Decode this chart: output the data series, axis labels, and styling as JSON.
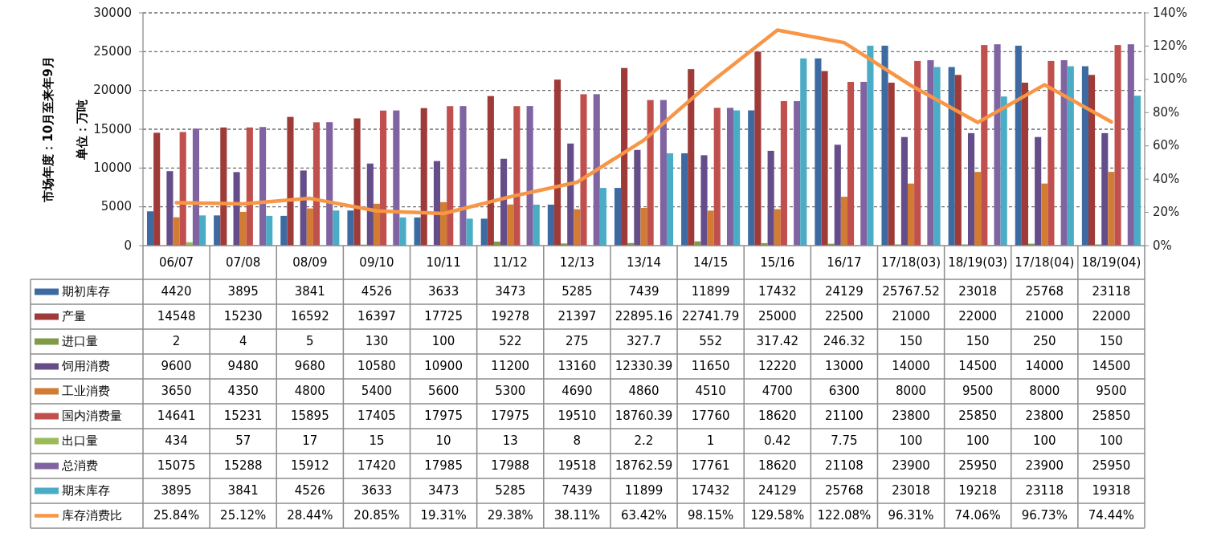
{
  "chart_data": {
    "type": "bar",
    "ylabel": "单位：万吨",
    "annotations": [
      "市场年度：10月至来年9月"
    ],
    "categories": [
      "06/07",
      "07/08",
      "08/09",
      "09/10",
      "10/11",
      "11/12",
      "12/13",
      "13/14",
      "14/15",
      "15/16",
      "16/17",
      "17/18(03)",
      "18/19(03)",
      "17/18(04)",
      "18/19(04)"
    ],
    "series": [
      {
        "name": "期初库存",
        "color": "#3d6aa0",
        "values": [
          4420,
          3895,
          3841,
          4526,
          3633,
          3473,
          5285,
          7439,
          11899,
          17432,
          24129,
          25767.52,
          23018,
          25768,
          23118
        ]
      },
      {
        "name": "产量",
        "color": "#9e3b38",
        "values": [
          14548,
          15230,
          16592,
          16397,
          17725,
          19278,
          21397,
          22895.16,
          22741.79,
          25000,
          22500,
          21000,
          22000,
          21000,
          22000
        ]
      },
      {
        "name": "进口量",
        "color": "#7f9a48",
        "values": [
          2,
          4,
          5,
          130,
          100,
          522,
          275,
          327.7,
          552,
          317.42,
          246.32,
          150,
          150,
          250,
          150
        ]
      },
      {
        "name": "饲用消费",
        "color": "#654d8a",
        "values": [
          9600,
          9480,
          9680,
          10580,
          10900,
          11200,
          13160,
          12330.39,
          11650,
          12220,
          13000,
          14000,
          14500,
          14000,
          14500
        ]
      },
      {
        "name": "工业消费",
        "color": "#d17b33",
        "values": [
          3650,
          4350,
          4800,
          5400,
          5600,
          5300,
          4690,
          4860,
          4510,
          4700,
          6300,
          8000,
          9500,
          8000,
          9500
        ]
      },
      {
        "name": "国内消费量",
        "color": "#c0504d",
        "values": [
          14641,
          15231,
          15895,
          17405,
          17975,
          17975,
          19510,
          18760.39,
          17760,
          18620,
          21100,
          23800,
          25850,
          23800,
          25850
        ]
      },
      {
        "name": "出口量",
        "color": "#9bbb59",
        "values": [
          434,
          57,
          17,
          15,
          10,
          13,
          8,
          2.2,
          1,
          0.42,
          7.75,
          100,
          100,
          100,
          100
        ]
      },
      {
        "name": "总消费",
        "color": "#8064a2",
        "values": [
          15075,
          15288,
          15912,
          17420,
          17985,
          17988,
          19518,
          18762.59,
          17761,
          18620,
          21108,
          23900,
          25950,
          23900,
          25950
        ]
      },
      {
        "name": "期末库存",
        "color": "#4bacc6",
        "values": [
          3895,
          3841,
          4526,
          3633,
          3473,
          5285,
          7439,
          11899,
          17432,
          24129,
          25768,
          23018,
          19218,
          23118,
          19318
        ]
      },
      {
        "name": "库存消费比",
        "type": "line",
        "axis": "y2",
        "color": "#f79646",
        "values": [
          25.84,
          25.12,
          28.44,
          20.85,
          19.31,
          29.38,
          38.11,
          63.42,
          98.15,
          129.58,
          122.08,
          96.31,
          74.06,
          96.73,
          74.44
        ],
        "value_labels": [
          "25.84%",
          "25.12%",
          "28.44%",
          "20.85%",
          "19.31%",
          "29.38%",
          "38.11%",
          "63.42%",
          "98.15%",
          "129.58%",
          "122.08%",
          "96.31%",
          "74.06%",
          "96.73%",
          "74.44%"
        ]
      }
    ],
    "ylim": [
      0,
      30000
    ],
    "yticks": [
      0,
      5000,
      10000,
      15000,
      20000,
      25000,
      30000
    ],
    "y2lim": [
      0,
      140
    ],
    "y2ticks": [
      {
        "value": 0,
        "label": "0%"
      },
      {
        "value": 20,
        "label": "20%"
      },
      {
        "value": 40,
        "label": "40%"
      },
      {
        "value": 60,
        "label": "60%"
      },
      {
        "value": 80,
        "label": "80%"
      },
      {
        "value": 100,
        "label": "100%"
      },
      {
        "value": 120,
        "label": "120%"
      },
      {
        "value": 140,
        "label": "140%"
      }
    ],
    "grid": "y",
    "legend": "bottom",
    "data_labels": true
  }
}
